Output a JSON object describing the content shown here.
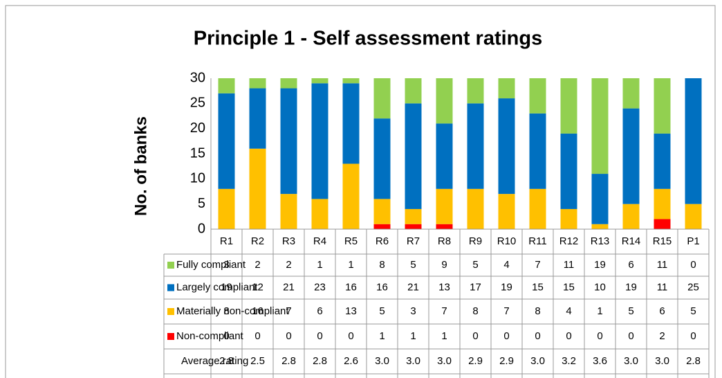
{
  "chart_data": {
    "type": "bar",
    "stacked": true,
    "title": "Principle 1 - Self assessment ratings",
    "y_label": "No. of banks",
    "categories": [
      "R1",
      "R2",
      "R3",
      "R4",
      "R5",
      "R6",
      "R7",
      "R8",
      "R9",
      "R10",
      "R11",
      "R12",
      "R13",
      "R14",
      "R15",
      "P1"
    ],
    "series": [
      {
        "name": "Fully compliant",
        "color": "#92d050",
        "values": [
          3,
          2,
          2,
          1,
          1,
          8,
          5,
          9,
          5,
          4,
          7,
          11,
          19,
          6,
          11,
          0
        ]
      },
      {
        "name": "Largely compliant",
        "color": "#0070c0",
        "values": [
          19,
          12,
          21,
          23,
          16,
          16,
          21,
          13,
          17,
          19,
          15,
          15,
          10,
          19,
          11,
          25
        ]
      },
      {
        "name": "Materially non-compliant",
        "color": "#ffc000",
        "values": [
          8,
          16,
          7,
          6,
          13,
          5,
          3,
          7,
          8,
          7,
          8,
          4,
          1,
          5,
          6,
          5
        ]
      },
      {
        "name": "Non-compliant",
        "color": "#ff0000",
        "values": [
          0,
          0,
          0,
          0,
          0,
          1,
          1,
          1,
          0,
          0,
          0,
          0,
          0,
          0,
          2,
          0
        ]
      }
    ],
    "average_rating": {
      "name": "Average rating",
      "values": [
        2.8,
        2.5,
        2.8,
        2.8,
        2.6,
        3.0,
        3.0,
        3.0,
        2.9,
        2.9,
        3.0,
        3.2,
        3.6,
        3.0,
        3.0,
        2.8
      ],
      "value_labels": [
        "2.8",
        "2.5",
        "2.8",
        "2.8",
        "2.6",
        "3.0",
        "3.0",
        "3.0",
        "2.9",
        "2.9",
        "3.0",
        "3.2",
        "3.6",
        "3.0",
        "3.0",
        "2.8"
      ]
    },
    "ylim": [
      0,
      30
    ],
    "yticks": [
      0,
      5,
      10,
      15,
      20,
      25,
      30
    ],
    "grid": false
  }
}
